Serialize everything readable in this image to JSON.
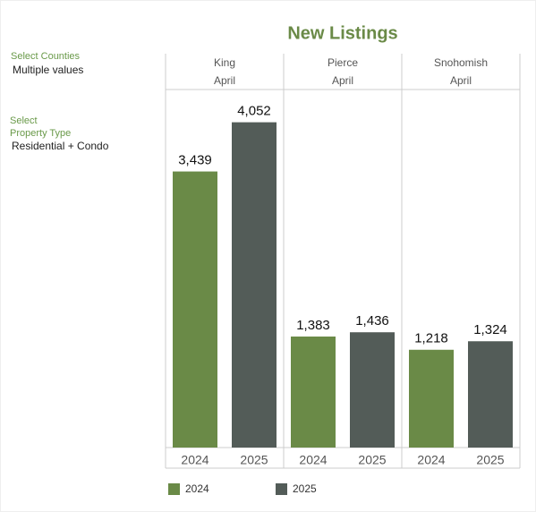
{
  "filters": [
    {
      "label": "Select Counties",
      "value": "Multiple values"
    },
    {
      "label": [
        "Select",
        "Property Type"
      ],
      "value": "Residential + Condo"
    }
  ],
  "chart_data": {
    "type": "bar",
    "title": "New Listings",
    "categories": [
      "King",
      "Pierce",
      "Snohomish"
    ],
    "months": [
      "April",
      "April",
      "April"
    ],
    "series": [
      {
        "name": "2024",
        "color": "#6a8a47",
        "values": [
          3439,
          1383,
          1218
        ],
        "value_labels": [
          "3,439",
          "1,383",
          "1,218"
        ]
      },
      {
        "name": "2025",
        "color": "#535c58",
        "values": [
          4052,
          1436,
          1324
        ],
        "value_labels": [
          "4,052",
          "1,436",
          "1,324"
        ]
      }
    ],
    "ylim": [
      0,
      4460
    ]
  }
}
